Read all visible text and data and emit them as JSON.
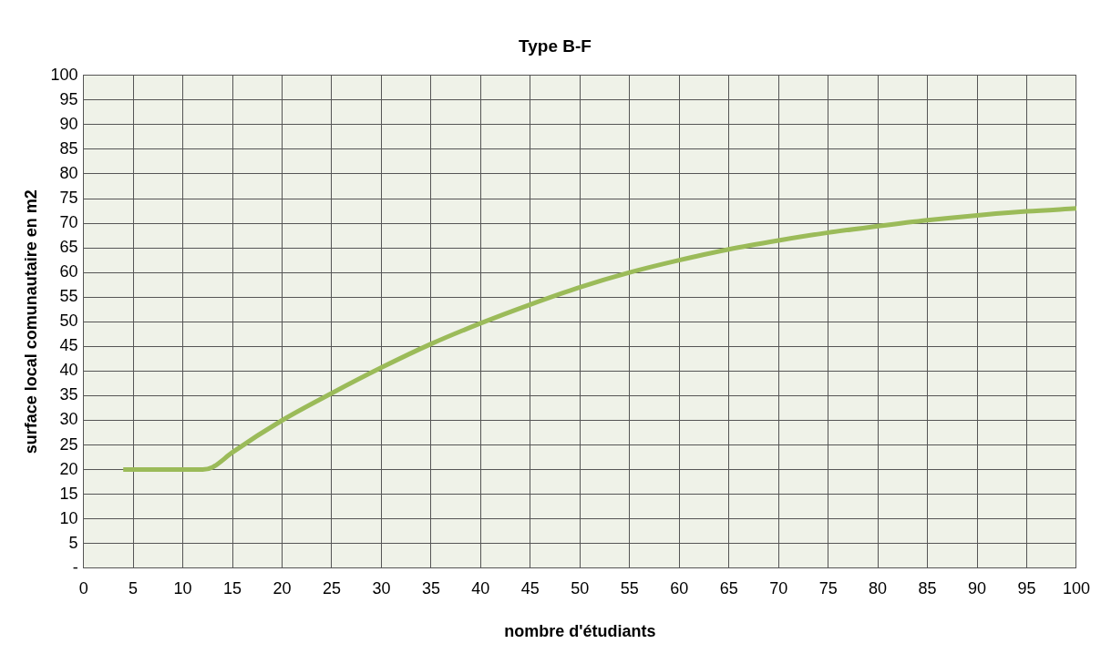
{
  "chart_data": {
    "type": "line",
    "title": "Type B-F",
    "xlabel": "nombre d'étudiants",
    "ylabel": "surface local comunautaire en m2",
    "series": [
      {
        "color": "#9bbb59",
        "x": [
          4,
          12,
          13,
          15,
          20,
          25,
          30,
          35,
          40,
          45,
          50,
          55,
          60,
          65,
          70,
          75,
          80,
          85,
          90,
          95,
          100
        ],
        "values": [
          20,
          20,
          20.5,
          23.5,
          30,
          35.5,
          40.7,
          45.5,
          49.7,
          53.5,
          57,
          60,
          62.5,
          64.7,
          66.5,
          68.1,
          69.4,
          70.6,
          71.6,
          72.4,
          73
        ]
      }
    ],
    "xlim": [
      0,
      100
    ],
    "xticks": [
      0,
      5,
      10,
      15,
      20,
      25,
      30,
      35,
      40,
      45,
      50,
      55,
      60,
      65,
      70,
      75,
      80,
      85,
      90,
      95,
      100
    ],
    "ylim": [
      0,
      100
    ],
    "yticks": [
      {
        "value": 0,
        "label": "-"
      },
      5,
      10,
      15,
      20,
      25,
      30,
      35,
      40,
      45,
      50,
      55,
      60,
      65,
      70,
      75,
      80,
      85,
      90,
      95,
      100
    ],
    "grid": true,
    "legend": false,
    "marker": "none",
    "line_style": "solid"
  }
}
